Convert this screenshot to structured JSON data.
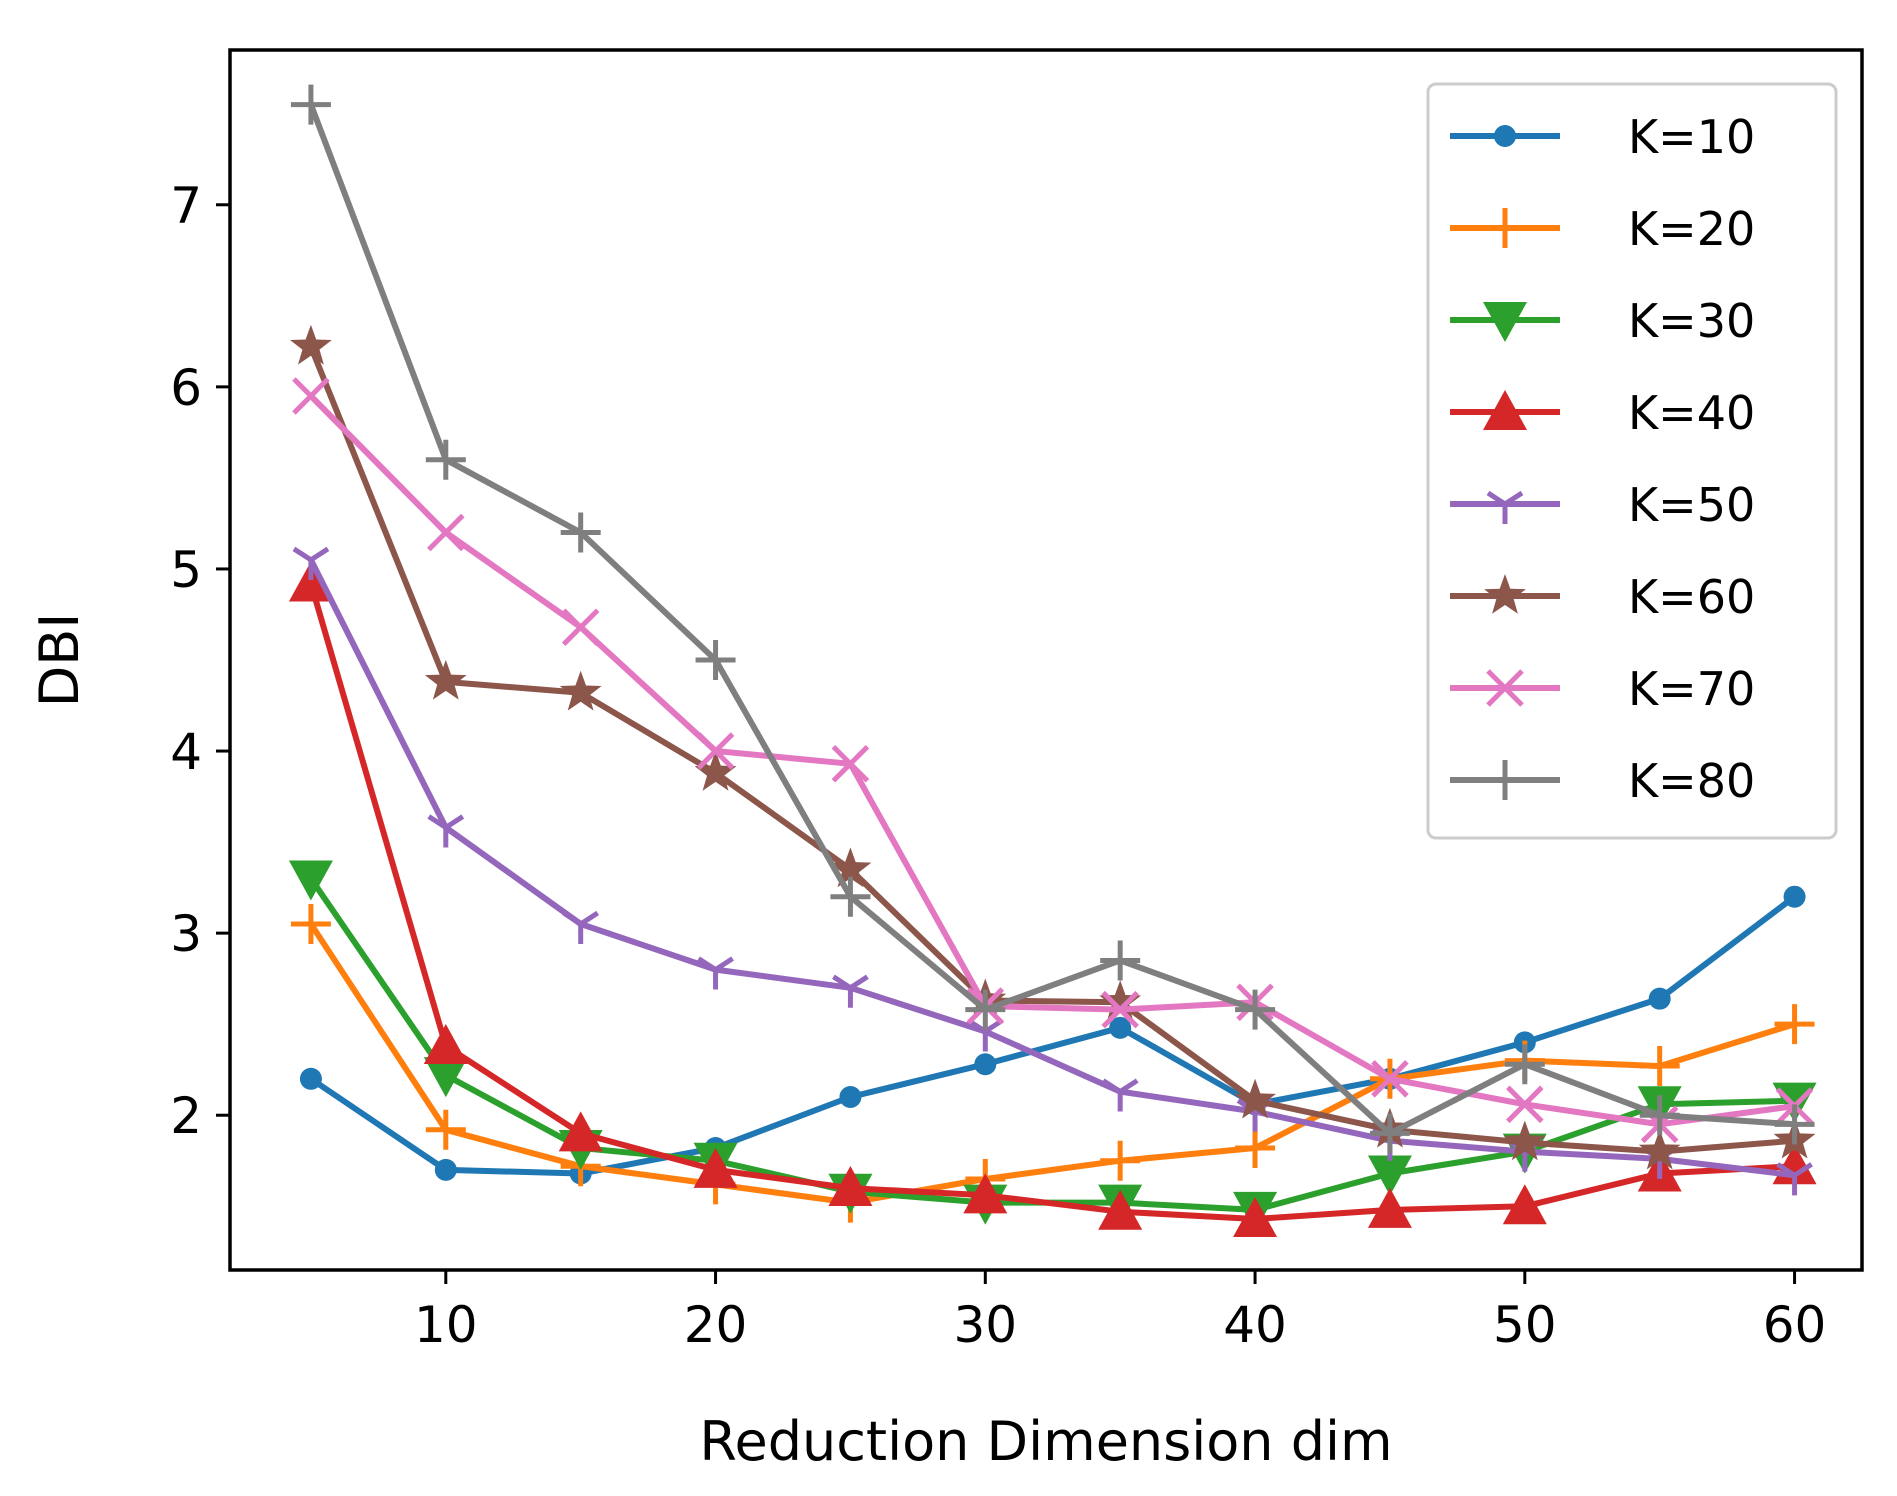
{
  "chart_data": {
    "type": "line",
    "title": "",
    "xlabel": "Reduction Dimension dim",
    "ylabel": "DBI",
    "x": [
      5,
      10,
      15,
      20,
      25,
      30,
      35,
      40,
      45,
      50,
      55,
      60
    ],
    "xlim": [
      2,
      62.5
    ],
    "ylim": [
      1.15,
      7.85
    ],
    "xticks": [
      10,
      20,
      30,
      40,
      50,
      60
    ],
    "yticks": [
      2,
      3,
      4,
      5,
      6,
      7
    ],
    "grid": false,
    "legend_position": "top-right",
    "series": [
      {
        "name": "K=10",
        "color": "#1f77b4",
        "marker": "point",
        "values": [
          2.2,
          1.7,
          1.68,
          1.82,
          2.1,
          2.28,
          2.48,
          2.06,
          2.2,
          2.4,
          2.64,
          3.2
        ]
      },
      {
        "name": "K=20",
        "color": "#ff7f0e",
        "marker": "plus",
        "values": [
          3.05,
          1.92,
          1.72,
          1.62,
          1.52,
          1.65,
          1.75,
          1.82,
          2.2,
          2.3,
          2.27,
          2.5
        ]
      },
      {
        "name": "K=30",
        "color": "#2ca02c",
        "marker": "triangle-down",
        "values": [
          3.3,
          2.22,
          1.82,
          1.75,
          1.58,
          1.52,
          1.52,
          1.48,
          1.68,
          1.8,
          2.06,
          2.08
        ]
      },
      {
        "name": "K=40",
        "color": "#d62728",
        "marker": "triangle-up",
        "values": [
          4.92,
          2.38,
          1.9,
          1.7,
          1.6,
          1.56,
          1.47,
          1.43,
          1.48,
          1.5,
          1.68,
          1.72
        ]
      },
      {
        "name": "K=50",
        "color": "#9467bd",
        "marker": "tri-down",
        "values": [
          5.05,
          3.58,
          3.05,
          2.8,
          2.7,
          2.46,
          2.13,
          2.02,
          1.86,
          1.8,
          1.76,
          1.67
        ]
      },
      {
        "name": "K=60",
        "color": "#8c564b",
        "marker": "star",
        "values": [
          6.22,
          4.38,
          4.32,
          3.88,
          3.35,
          2.63,
          2.62,
          2.08,
          1.92,
          1.85,
          1.8,
          1.86
        ]
      },
      {
        "name": "K=70",
        "color": "#e377c2",
        "marker": "x",
        "values": [
          5.95,
          5.2,
          4.68,
          4.0,
          3.93,
          2.6,
          2.58,
          2.62,
          2.2,
          2.06,
          1.95,
          2.05
        ]
      },
      {
        "name": "K=80",
        "color": "#7f7f7f",
        "marker": "plus",
        "values": [
          7.55,
          5.6,
          5.2,
          4.5,
          3.2,
          2.58,
          2.85,
          2.58,
          1.9,
          2.28,
          2.0,
          1.95
        ]
      }
    ]
  }
}
